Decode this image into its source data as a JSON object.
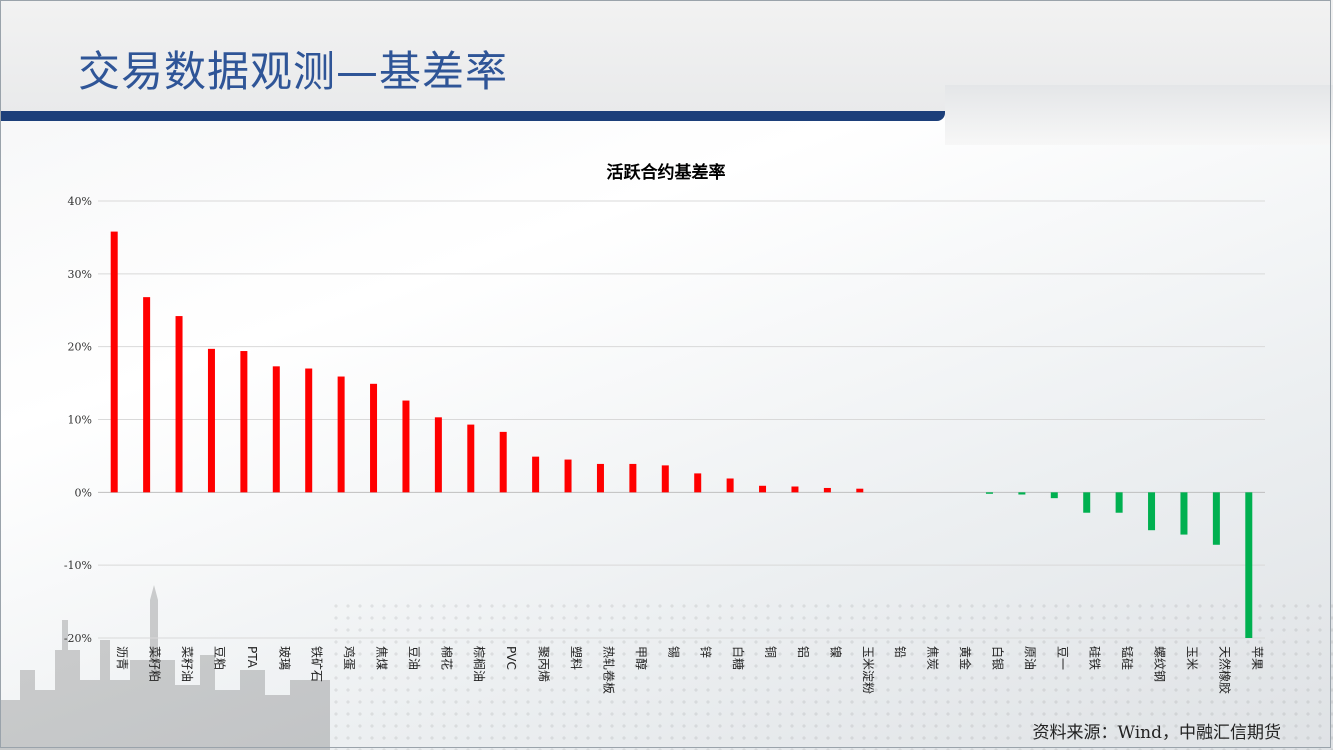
{
  "page": {
    "title": "交易数据观测—基差率",
    "source": "资料来源：Wind，中融汇信期货"
  },
  "colors": {
    "positive": "#ff0000",
    "negative": "#00b050",
    "title": "#2f5597",
    "bar": "#1c3f7a"
  },
  "chart_data": {
    "type": "bar",
    "title": "活跃合约基差率",
    "ylim": [
      -0.2,
      0.4
    ],
    "yticks": [
      -0.2,
      -0.1,
      0,
      0.1,
      0.2,
      0.3,
      0.4
    ],
    "ytick_labels": [
      "-20%",
      "-10%",
      "0%",
      "10%",
      "20%",
      "30%",
      "40%"
    ],
    "grid": true,
    "categories": [
      "沥青",
      "菜籽粕",
      "菜籽油",
      "豆粕",
      "PTA",
      "玻璃",
      "铁矿石",
      "鸡蛋",
      "焦煤",
      "豆油",
      "棉花",
      "棕榈油",
      "PVC",
      "聚丙烯",
      "塑料",
      "热轧卷板",
      "甲醇",
      "锡",
      "锌",
      "白糖",
      "铜",
      "铝",
      "镍",
      "玉米淀粉",
      "铅",
      "焦炭",
      "黄金",
      "白银",
      "原油",
      "豆一",
      "硅铁",
      "锰硅",
      "螺纹钢",
      "玉米",
      "天然橡胶",
      "苹果"
    ],
    "values": [
      0.358,
      0.268,
      0.242,
      0.197,
      0.194,
      0.173,
      0.17,
      0.159,
      0.149,
      0.126,
      0.103,
      0.093,
      0.083,
      0.049,
      0.045,
      0.039,
      0.039,
      0.037,
      0.026,
      0.019,
      0.009,
      0.008,
      0.006,
      0.005,
      0.0,
      0.0,
      0.0,
      -0.002,
      -0.003,
      -0.008,
      -0.028,
      -0.028,
      -0.052,
      -0.058,
      -0.072,
      -0.2
    ]
  }
}
